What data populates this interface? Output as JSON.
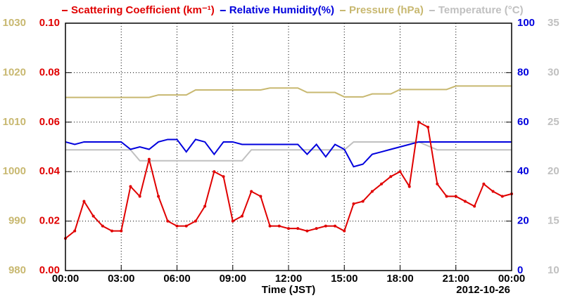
{
  "chart_data": {
    "type": "line",
    "xlabel": "Time (JST)",
    "annotation": "2012-10-26",
    "x": [
      0,
      0.5,
      1,
      1.5,
      2,
      2.5,
      3,
      3.5,
      4,
      4.5,
      5,
      5.5,
      6,
      6.5,
      7,
      7.5,
      8,
      8.5,
      9,
      9.5,
      10,
      10.5,
      11,
      11.5,
      12,
      12.5,
      13,
      13.5,
      14,
      14.5,
      15,
      15.5,
      16,
      16.5,
      17,
      17.5,
      18,
      18.5,
      19,
      19.5,
      20,
      20.5,
      21,
      21.5,
      22,
      22.5,
      23,
      23.5,
      24
    ],
    "xlim": [
      0,
      24
    ],
    "xticks": [
      {
        "value": 0,
        "label": "00:00"
      },
      {
        "value": 3,
        "label": "03:00"
      },
      {
        "value": 6,
        "label": "06:00"
      },
      {
        "value": 9,
        "label": "09:00"
      },
      {
        "value": 12,
        "label": "12:00"
      },
      {
        "value": 15,
        "label": "15:00"
      },
      {
        "value": 18,
        "label": "18:00"
      },
      {
        "value": 21,
        "label": "21:00"
      },
      {
        "value": 24,
        "label": "00:00"
      }
    ],
    "ylim": [
      0,
      0.1
    ],
    "yticks": [
      {
        "value": 0,
        "label": "0.00"
      },
      {
        "value": 0.02,
        "label": "0.02"
      },
      {
        "value": 0.04,
        "label": "0.04"
      },
      {
        "value": 0.06,
        "label": "0.06"
      },
      {
        "value": 0.08,
        "label": "0.08"
      },
      {
        "value": 0.1,
        "label": "0.10"
      }
    ],
    "y2lim": [
      0,
      100
    ],
    "y2ticks": [
      0,
      20,
      40,
      60,
      80,
      100
    ],
    "y3lim": [
      980,
      1030
    ],
    "y3ticks": [
      980,
      990,
      1000,
      1010,
      1020,
      1030
    ],
    "y4lim": [
      10,
      35
    ],
    "y4ticks": [
      10,
      15,
      20,
      25,
      30,
      35
    ],
    "grid": true,
    "series": [
      {
        "name": "Scattering Coefficient (km⁻¹)",
        "color": "#e00000",
        "axis": "y",
        "markers": true,
        "values": [
          0.013,
          0.016,
          0.028,
          0.022,
          0.018,
          0.016,
          0.016,
          0.034,
          0.03,
          0.045,
          0.03,
          0.02,
          0.018,
          0.018,
          0.02,
          0.026,
          0.04,
          0.038,
          0.02,
          0.022,
          0.032,
          0.03,
          0.018,
          0.018,
          0.017,
          0.017,
          0.016,
          0.017,
          0.018,
          0.018,
          0.016,
          0.027,
          0.028,
          0.032,
          0.035,
          0.038,
          0.04,
          0.034,
          0.06,
          0.058,
          0.035,
          0.03,
          0.03,
          0.028,
          0.026,
          0.035,
          0.032,
          0.03,
          0.031
        ]
      },
      {
        "name": "Relative Humidity(%)",
        "color": "#0000dd",
        "axis": "y2",
        "markers": false,
        "values": [
          52,
          51,
          52,
          52,
          52,
          52,
          52,
          49,
          50,
          49,
          52,
          53,
          53,
          48,
          53,
          52,
          47,
          52,
          52,
          51,
          51,
          51,
          51,
          51,
          51,
          51,
          47,
          51,
          46,
          51,
          49,
          42,
          43,
          47,
          48,
          49,
          50,
          51,
          52,
          52,
          52,
          52,
          52,
          52,
          52,
          52,
          52,
          52,
          52
        ]
      },
      {
        "name": "Pressure (hPa)",
        "color": "#c8b870",
        "axis": "y3",
        "markers": false,
        "values": [
          1015,
          1015,
          1015,
          1015,
          1015,
          1015,
          1015,
          1015,
          1015,
          1015,
          1015.5,
          1015.5,
          1015.5,
          1015.5,
          1016.5,
          1016.5,
          1016.5,
          1016.5,
          1016.5,
          1016.5,
          1016.5,
          1016.5,
          1016.9,
          1016.9,
          1016.9,
          1016.9,
          1016,
          1016,
          1016,
          1016,
          1015.1,
          1015.1,
          1015.1,
          1015.7,
          1015.7,
          1015.7,
          1016.6,
          1016.6,
          1016.6,
          1016.6,
          1016.6,
          1016.6,
          1017.3,
          1017.3,
          1017.3,
          1017.3,
          1017.3,
          1017.3,
          1017.3
        ]
      },
      {
        "name": "Temperature (°C)",
        "color": "#c0c0c0",
        "axis": "y4",
        "markers": false,
        "values": [
          22.2,
          22.2,
          22.2,
          22.2,
          22.2,
          22.2,
          22.2,
          22.2,
          21.1,
          21.1,
          21.1,
          21.1,
          21.1,
          21.1,
          21.1,
          21.1,
          21.1,
          21.1,
          21.1,
          21.1,
          22.2,
          22.2,
          22.2,
          22.2,
          22.2,
          22.2,
          22.2,
          22.2,
          22.2,
          22.2,
          22.2,
          23,
          23,
          23,
          23,
          23,
          23,
          23,
          23,
          22.6,
          22.2,
          22.2,
          22.2,
          22.2,
          22.2,
          22.2,
          22.2,
          22.2,
          22.2
        ]
      }
    ]
  }
}
